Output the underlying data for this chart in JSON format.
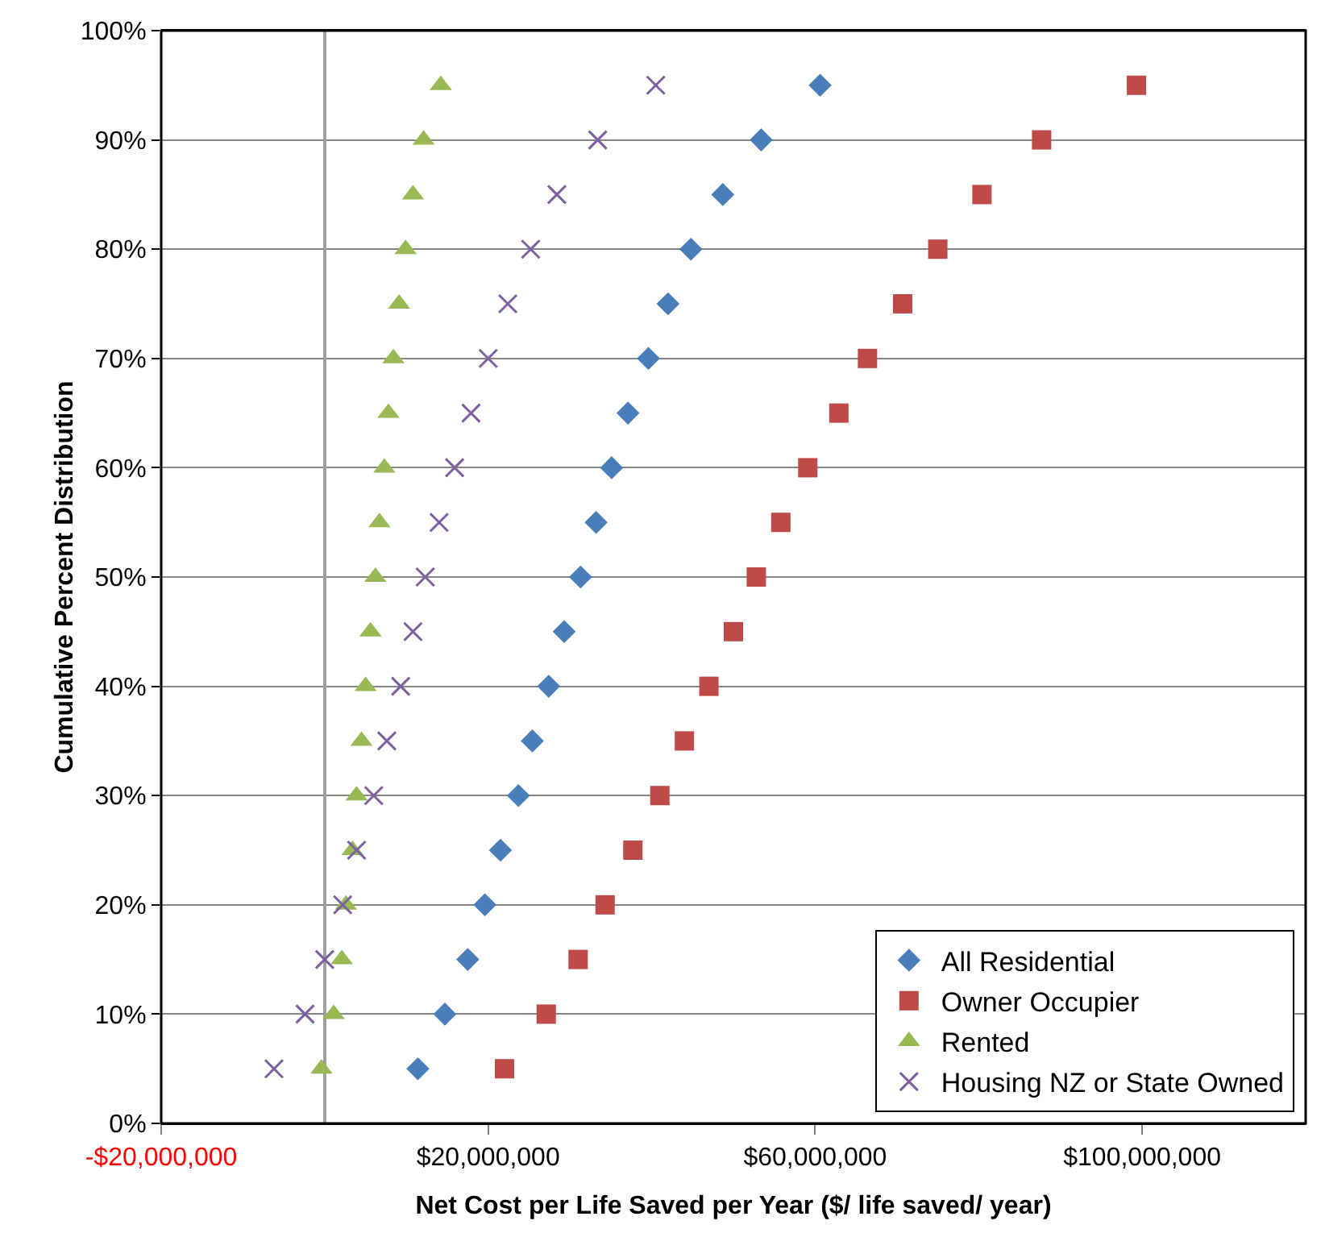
{
  "chart_data": {
    "type": "scatter",
    "xlabel": "Net Cost per Life Saved per Year ($/ life saved/ year)",
    "ylabel": "Cumulative Percent Distribution",
    "xlim": [
      -20000000,
      120000000
    ],
    "xticks": [
      {
        "value": -20000000,
        "label": "-$20,000,000"
      },
      {
        "value": 20000000,
        "label": "$20,000,000"
      },
      {
        "value": 60000000,
        "label": "$60,000,000"
      },
      {
        "value": 100000000,
        "label": "$100,000,000"
      }
    ],
    "ylim": [
      0,
      100
    ],
    "yticks": [
      {
        "value": 0,
        "label": "0%"
      },
      {
        "value": 10,
        "label": "10%"
      },
      {
        "value": 20,
        "label": "20%"
      },
      {
        "value": 30,
        "label": "30%"
      },
      {
        "value": 40,
        "label": "40%"
      },
      {
        "value": 50,
        "label": "50%"
      },
      {
        "value": 60,
        "label": "60%"
      },
      {
        "value": 70,
        "label": "70%"
      },
      {
        "value": 80,
        "label": "80%"
      },
      {
        "value": 90,
        "label": "90%"
      },
      {
        "value": 100,
        "label": "100%"
      }
    ],
    "grid": "y",
    "legend": "bottom right",
    "series": [
      {
        "name": "All Residential",
        "color": "#4a7ebb",
        "marker": "diamond",
        "x": [
          11400000,
          14700000,
          17500000,
          19600000,
          21500000,
          23700000,
          25400000,
          27400000,
          29300000,
          31300000,
          33200000,
          35100000,
          37100000,
          39600000,
          42000000,
          44800000,
          48700000,
          53400000,
          60600000
        ],
        "values": [
          5,
          10,
          15,
          20,
          25,
          30,
          35,
          40,
          45,
          50,
          55,
          60,
          65,
          70,
          75,
          80,
          85,
          90,
          95
        ]
      },
      {
        "name": "Owner Occupier",
        "color": "#be4b48",
        "marker": "square",
        "x": [
          22000000,
          27100000,
          31000000,
          34300000,
          37700000,
          41000000,
          44000000,
          47000000,
          50000000,
          52800000,
          55800000,
          59100000,
          62900000,
          66400000,
          70700000,
          75000000,
          80400000,
          87700000,
          99300000
        ],
        "values": [
          5,
          10,
          15,
          20,
          25,
          30,
          35,
          40,
          45,
          50,
          55,
          60,
          65,
          70,
          75,
          80,
          85,
          90,
          95
        ]
      },
      {
        "name": "Rented",
        "color": "#98b954",
        "marker": "triangle",
        "x": [
          -400000,
          1100000,
          2100000,
          2600000,
          3400000,
          3900000,
          4500000,
          5000000,
          5600000,
          6200000,
          6700000,
          7300000,
          7800000,
          8400000,
          9100000,
          9900000,
          10800000,
          12100000,
          14200000
        ],
        "values": [
          5,
          10,
          15,
          20,
          25,
          30,
          35,
          40,
          45,
          50,
          55,
          60,
          65,
          70,
          75,
          80,
          85,
          90,
          95
        ]
      },
      {
        "name": "Housing NZ or State Owned",
        "color": "#7d60a0",
        "marker": "cross",
        "x": [
          -6200000,
          -2400000,
          0,
          2200000,
          3900000,
          6000000,
          7600000,
          9300000,
          10800000,
          12300000,
          14000000,
          15900000,
          17900000,
          20000000,
          22400000,
          25200000,
          28400000,
          33400000,
          40500000
        ],
        "values": [
          5,
          10,
          15,
          20,
          25,
          30,
          35,
          40,
          45,
          50,
          55,
          60,
          65,
          70,
          75,
          80,
          85,
          90,
          95
        ]
      }
    ]
  }
}
